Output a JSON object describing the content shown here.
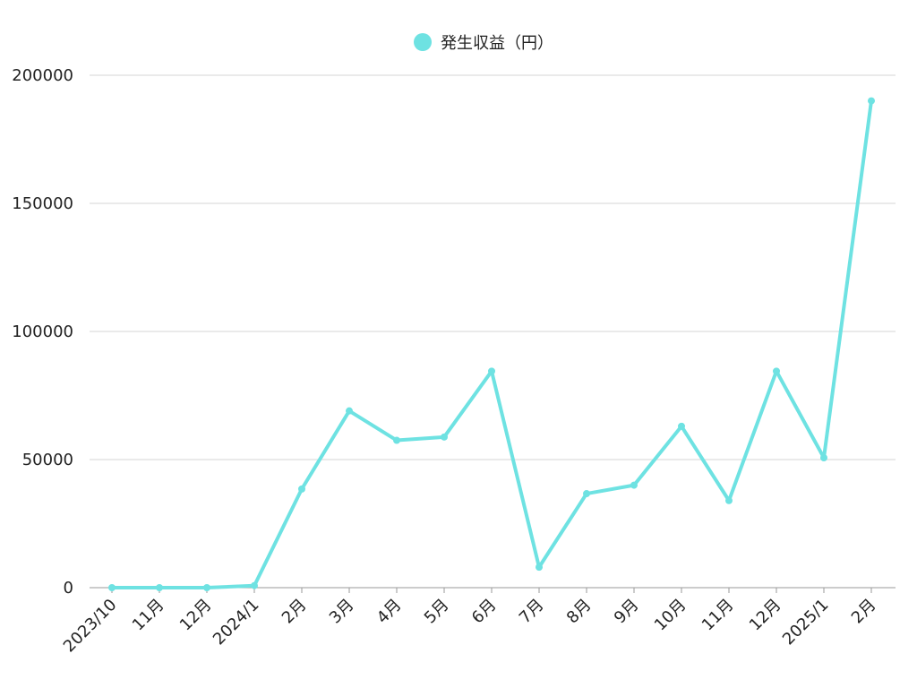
{
  "chart_data": {
    "type": "line",
    "categories": [
      "2023/10",
      "11月",
      "12月",
      "2024/1",
      "2月",
      "3月",
      "4月",
      "5月",
      "6月",
      "7月",
      "8月",
      "9月",
      "10月",
      "11月",
      "12月",
      "2025/1",
      "2月"
    ],
    "series": [
      {
        "name": "発生収益（円）",
        "color": "#6ee2e2",
        "values": [
          0,
          0,
          0,
          800,
          38500,
          69000,
          57500,
          58800,
          84500,
          8000,
          36700,
          40000,
          63000,
          34000,
          84500,
          50700,
          190000
        ]
      }
    ],
    "yticks": [
      "0",
      "50000",
      "100000",
      "150000",
      "200000"
    ],
    "ylim": [
      0,
      200000
    ],
    "grid": true,
    "legend_position": "top-center"
  }
}
